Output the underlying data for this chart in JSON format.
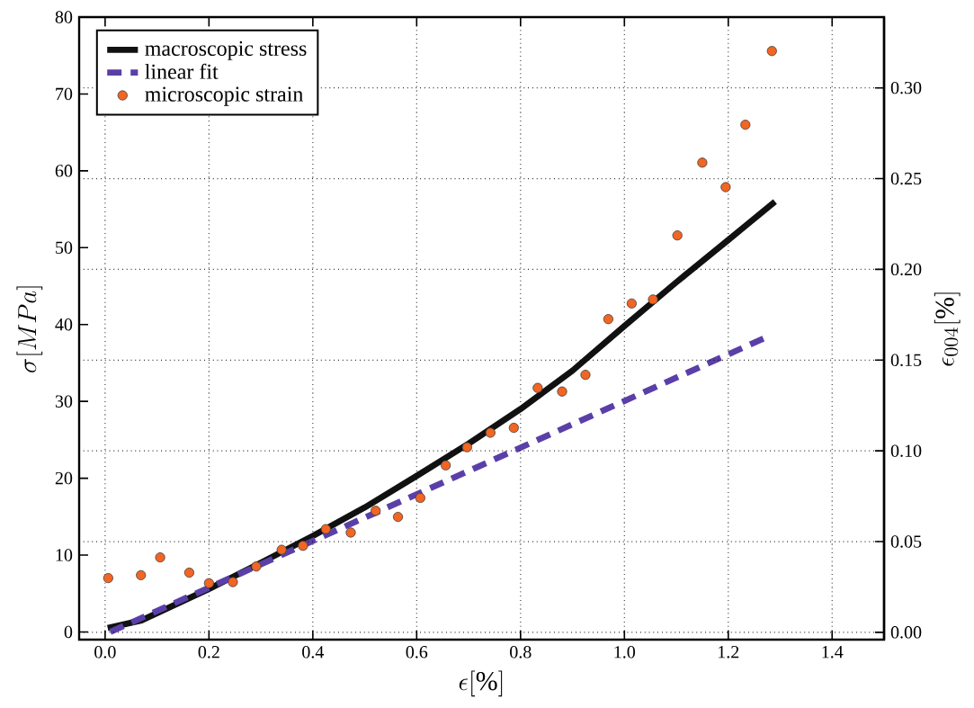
{
  "chart_data": {
    "type": "line",
    "xlabel": "\\epsilon[\\%]",
    "ylabel": "\\sigma[MPa]",
    "y2label": "\\epsilon_{004}[\\%]",
    "xlim": [
      -0.05,
      1.5
    ],
    "ylim": [
      -1,
      80
    ],
    "y2lim": [
      -0.004,
      0.339
    ],
    "xticks": [
      {
        "value": 0,
        "label": "0.0"
      },
      {
        "value": 0.2,
        "label": "0.2"
      },
      {
        "value": 0.4,
        "label": "0.4"
      },
      {
        "value": 0.6,
        "label": "0.6"
      },
      {
        "value": 0.8,
        "label": "0.8"
      },
      {
        "value": 1.0,
        "label": "1.0"
      },
      {
        "value": 1.2,
        "label": "1.2"
      },
      {
        "value": 1.4,
        "label": "1.4"
      }
    ],
    "yticks": [
      0,
      10,
      20,
      30,
      40,
      50,
      60,
      70,
      80
    ],
    "y2ticks": [
      {
        "value": 0,
        "label": "0.00"
      },
      {
        "value": 0.05,
        "label": "0.05"
      },
      {
        "value": 0.1,
        "label": "0.10"
      },
      {
        "value": 0.15,
        "label": "0.15"
      },
      {
        "value": 0.2,
        "label": "0.20"
      },
      {
        "value": 0.25,
        "label": "0.25"
      },
      {
        "value": 0.3,
        "label": "0.30"
      }
    ],
    "grid": true,
    "legend": "top left",
    "series": [
      {
        "name": "macroscopic stress",
        "color": "#111111",
        "line_style": "solid",
        "x": [
          0.005,
          0.07,
          0.2,
          0.3,
          0.4,
          0.5,
          0.6,
          0.7,
          0.8,
          0.9,
          1.0,
          1.1,
          1.2,
          1.29
        ],
        "values": [
          0.5,
          1.5,
          5.6,
          9,
          12.5,
          16.2,
          20.3,
          24.5,
          29,
          34,
          39.8,
          45.5,
          51,
          56
        ]
      },
      {
        "name": "linear fit",
        "color": "#5b3fa8",
        "line_style": "dashed",
        "x": [
          0.01,
          1.275
        ],
        "values": [
          0,
          38.4
        ]
      },
      {
        "name": "microscopic strain",
        "type": "scatter",
        "axis": "y2",
        "marker": "circle",
        "color": "#f26522",
        "x": [
          0.006,
          0.069,
          0.106,
          0.162,
          0.2,
          0.246,
          0.291,
          0.34,
          0.381,
          0.425,
          0.473,
          0.521,
          0.564,
          0.607,
          0.656,
          0.697,
          0.742,
          0.787,
          0.833,
          0.88,
          0.925,
          0.969,
          1.014,
          1.055,
          1.102,
          1.15,
          1.195,
          1.233,
          1.284
        ],
        "values": [
          0.0299,
          0.0315,
          0.0413,
          0.0329,
          0.0271,
          0.0277,
          0.0363,
          0.0455,
          0.0477,
          0.0569,
          0.055,
          0.067,
          0.0636,
          0.0741,
          0.092,
          0.102,
          0.11,
          0.1127,
          0.1347,
          0.1327,
          0.1419,
          0.1726,
          0.1812,
          0.1834,
          0.2187,
          0.2588,
          0.2453,
          0.2797,
          0.3203
        ]
      }
    ]
  }
}
